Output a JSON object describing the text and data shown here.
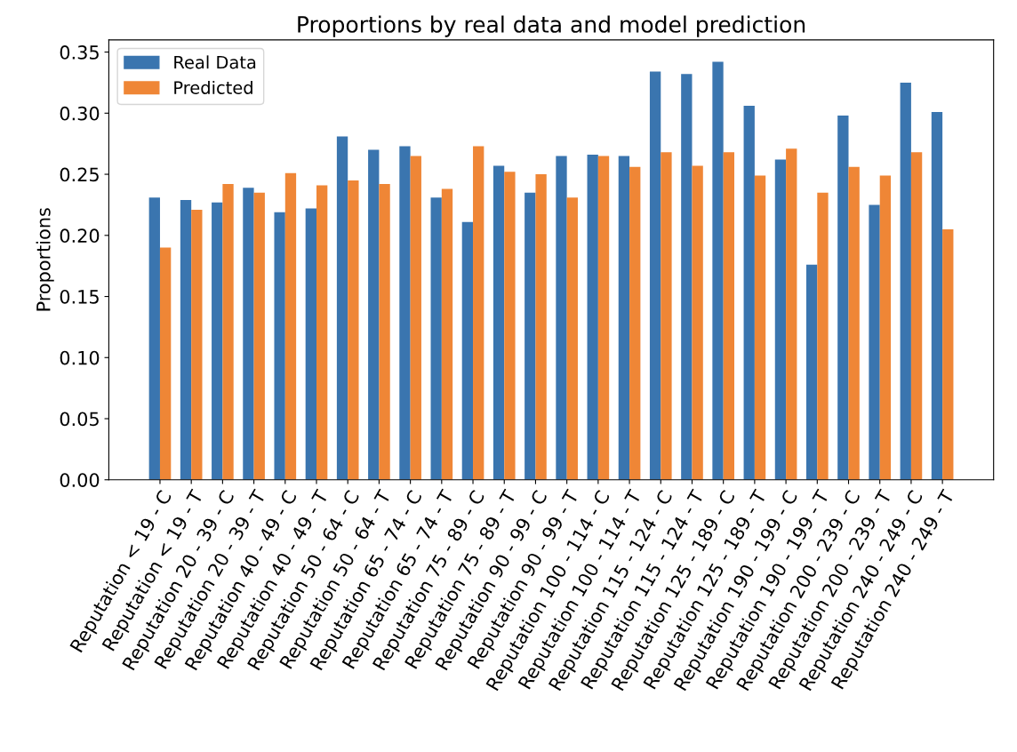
{
  "chart_data": {
    "type": "bar",
    "title": "Proportions by real data and model prediction",
    "ylabel": "Proportions",
    "categories": [
      "Reputation < 19 - C",
      "Reputation < 19 - T",
      "Reputation 20 - 39 - C",
      "Reputation 20 - 39 - T",
      "Reputation 40 - 49 - C",
      "Reputation 40 - 49 - T",
      "Reputation 50 - 64 - C",
      "Reputation 50 - 64 - T",
      "Reputation 65 - 74 - C",
      "Reputation 65 - 74 - T",
      "Reputation 75 - 89 - C",
      "Reputation 75 - 89 - T",
      "Reputation 90 - 99 - C",
      "Reputation 90 - 99 - T",
      "Reputation 100 - 114 - C",
      "Reputation 100 - 114 - T",
      "Reputation 115 - 124 - C",
      "Reputation 115 - 124 - T",
      "Reputation 125 - 189 - C",
      "Reputation 125 - 189 - T",
      "Reputation 190 - 199 - C",
      "Reputation 190 - 199 - T",
      "Reputation 200 - 239 - C",
      "Reputation 200 - 239 - T",
      "Reputation 240 - 249 - C",
      "Reputation 240 - 249 - T"
    ],
    "series": [
      {
        "name": "Real Data",
        "color": "#3a75af",
        "values": [
          0.231,
          0.229,
          0.227,
          0.239,
          0.219,
          0.222,
          0.281,
          0.27,
          0.273,
          0.231,
          0.211,
          0.257,
          0.235,
          0.265,
          0.266,
          0.265,
          0.334,
          0.332,
          0.342,
          0.306,
          0.262,
          0.176,
          0.298,
          0.225,
          0.325,
          0.301
        ]
      },
      {
        "name": "Predicted",
        "color": "#ef8636",
        "values": [
          0.19,
          0.221,
          0.242,
          0.235,
          0.251,
          0.241,
          0.245,
          0.242,
          0.265,
          0.238,
          0.273,
          0.252,
          0.25,
          0.231,
          0.265,
          0.256,
          0.268,
          0.257,
          0.268,
          0.249,
          0.271,
          0.235,
          0.256,
          0.249,
          0.268,
          0.205
        ]
      }
    ],
    "ylim": [
      0,
      0.36
    ],
    "yticks": [
      {
        "value": 0,
        "label": "0.00"
      },
      {
        "value": 0.05,
        "label": "0.05"
      },
      {
        "value": 0.1,
        "label": "0.10"
      },
      {
        "value": 0.15,
        "label": "0.15"
      },
      {
        "value": 0.2,
        "label": "0.20"
      },
      {
        "value": 0.25,
        "label": "0.25"
      },
      {
        "value": 0.3,
        "label": "0.30"
      },
      {
        "value": 0.35,
        "label": "0.35"
      }
    ],
    "legend": "top left",
    "grid": false
  }
}
